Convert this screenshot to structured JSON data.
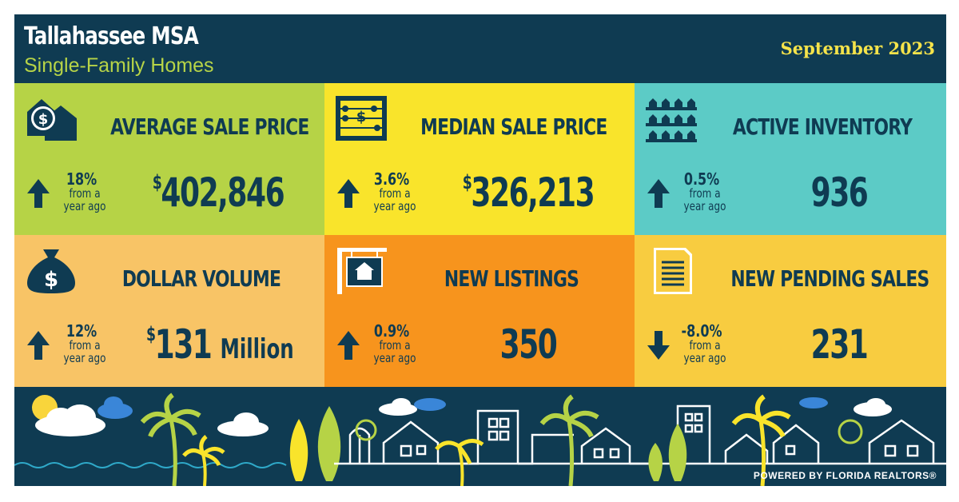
{
  "header": {
    "title": "Tallahassee MSA",
    "subtitle": "Single-Family Homes",
    "period": "September 2023"
  },
  "colors": {
    "background": "#0f3b52",
    "green": "#b6d346",
    "yellow": "#f9e42b",
    "teal": "#5ccbc6",
    "peach": "#f8c466",
    "orange": "#f7941d",
    "gold": "#f8cc40",
    "text_dark": "#0f3b52"
  },
  "metrics": [
    {
      "label": "AVERAGE SALE PRICE",
      "change": "18%",
      "change_sub": "from a year ago",
      "direction": "up",
      "value_prefix": "$",
      "value": "402,846",
      "value_unit": "",
      "icon": "house-dollar-icon",
      "color": "#b6d346"
    },
    {
      "label": "MEDIAN SALE PRICE",
      "change": "3.6%",
      "change_sub": "from a year ago",
      "direction": "up",
      "value_prefix": "$",
      "value": "326,213",
      "value_unit": "",
      "icon": "abacus-icon",
      "color": "#f9e42b"
    },
    {
      "label": "ACTIVE INVENTORY",
      "change": "0.5%",
      "change_sub": "from a year ago",
      "direction": "up",
      "value_prefix": "",
      "value": "936",
      "value_unit": "",
      "icon": "houses-shelf-icon",
      "color": "#5ccbc6"
    },
    {
      "label": "DOLLAR VOLUME",
      "change": "12%",
      "change_sub": "from a year ago",
      "direction": "up",
      "value_prefix": "$",
      "value": "131",
      "value_unit": "Million",
      "icon": "money-bag-icon",
      "color": "#f8c466"
    },
    {
      "label": "NEW LISTINGS",
      "change": "0.9%",
      "change_sub": "from a year ago",
      "direction": "up",
      "value_prefix": "",
      "value": "350",
      "value_unit": "",
      "icon": "listing-sign-icon",
      "color": "#f7941d"
    },
    {
      "label": "NEW PENDING SALES",
      "change": "-8.0%",
      "change_sub": "from a year ago",
      "direction": "down",
      "value_prefix": "",
      "value": "231",
      "value_unit": "",
      "icon": "document-icon",
      "color": "#f8cc40"
    }
  ],
  "footer": {
    "powered_by": "POWERED BY FLORIDA REALTORS®"
  }
}
